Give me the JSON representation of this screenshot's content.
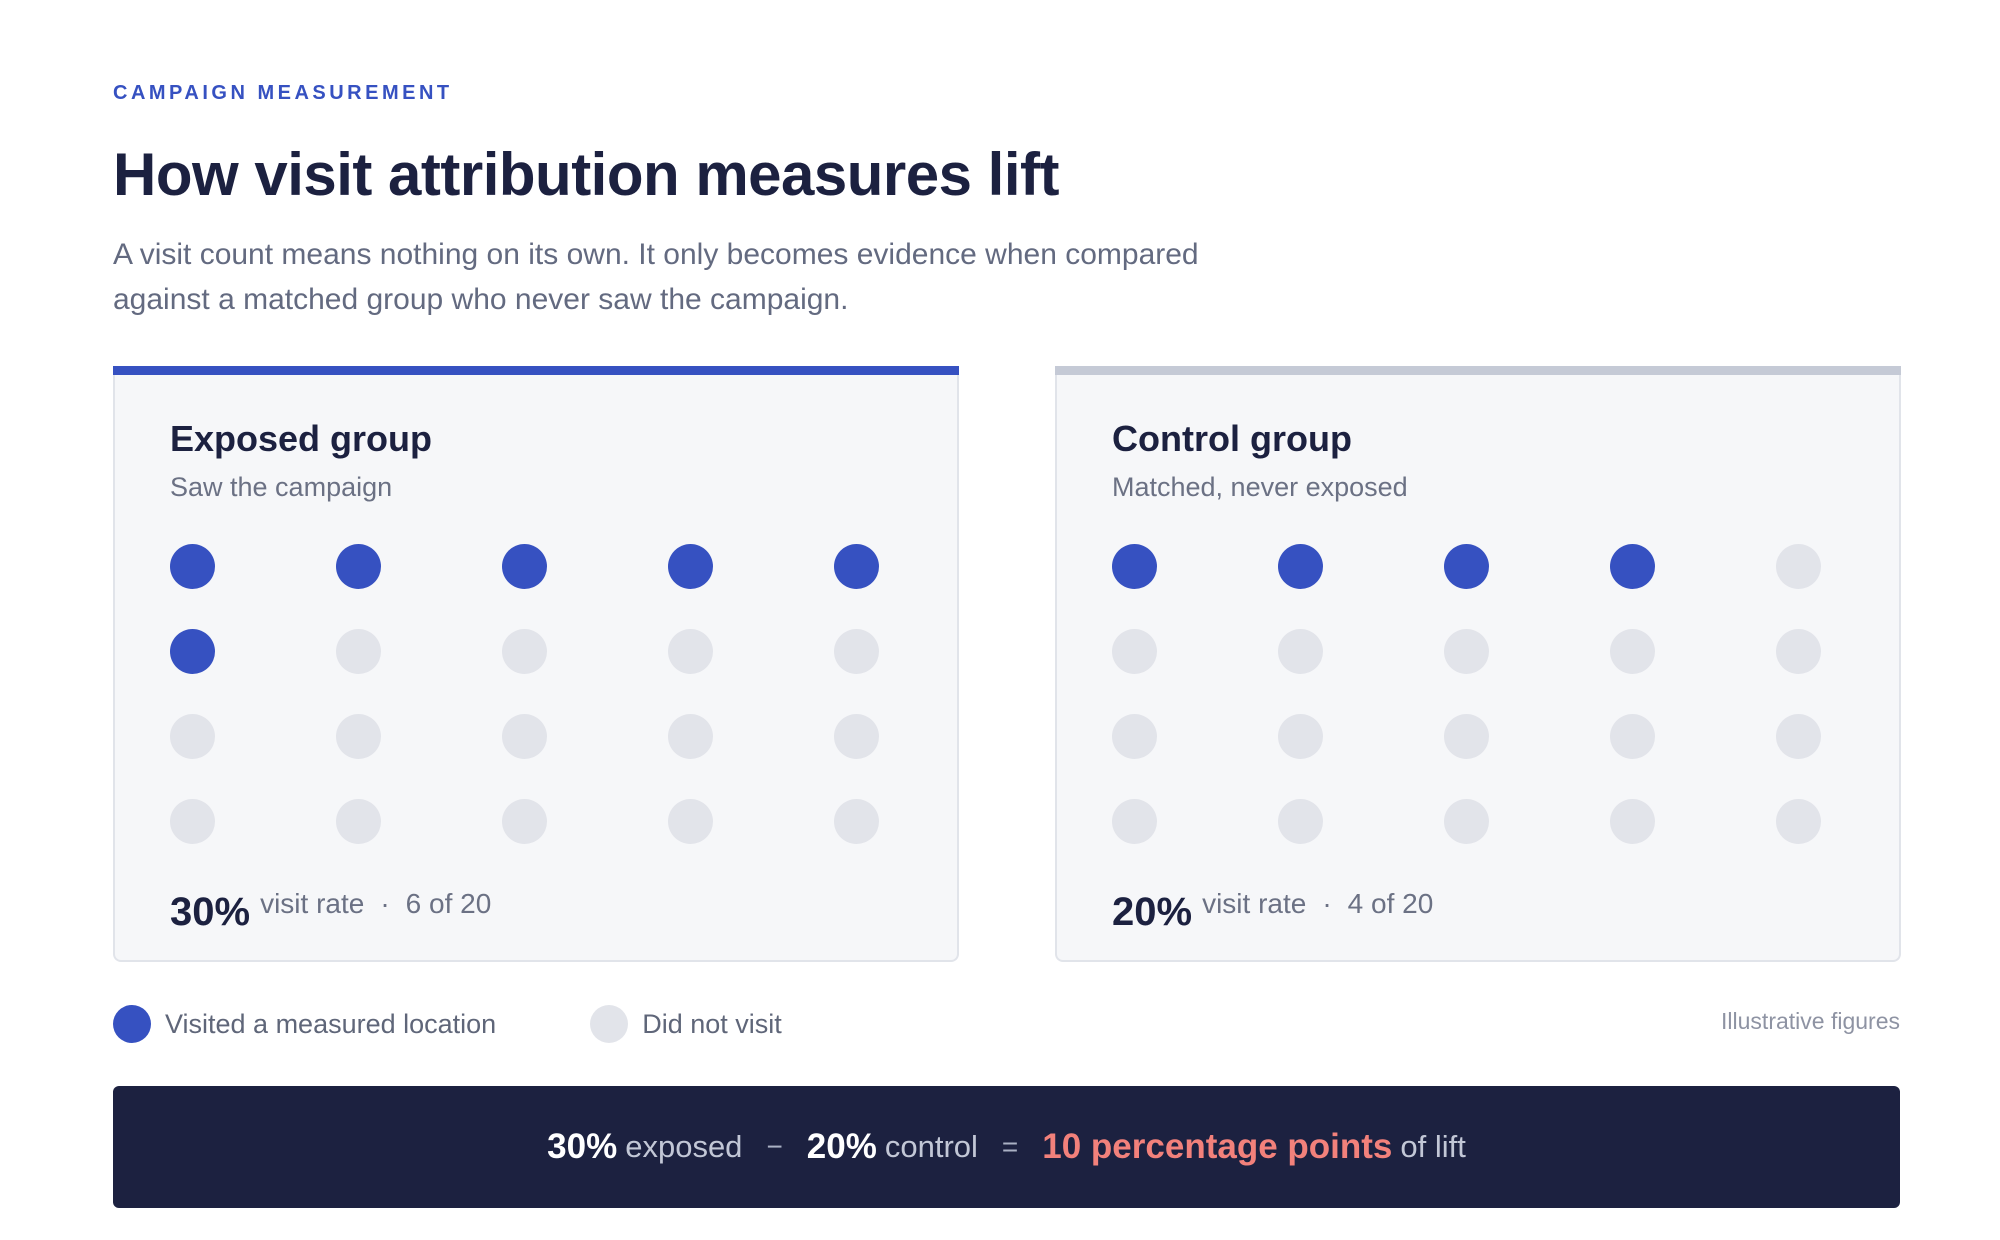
{
  "eyebrow": "CAMPAIGN MEASUREMENT",
  "title": "How visit attribution measures lift",
  "subtitle": "A visit count means nothing on its own. It only becomes evidence when compared against a matched group who never saw the campaign.",
  "colors": {
    "accent": "#3651c1",
    "visited": "#3651c1",
    "not_visited": "#e2e4ea",
    "banner_bg": "#1c2140",
    "highlight": "#f2817b"
  },
  "groups": [
    {
      "title": "Exposed group",
      "subtitle": "Saw the campaign",
      "visited": 6,
      "total": 20,
      "pct": "30%",
      "rate_label": "visit rate",
      "separator": "·",
      "count_text": "6 of 20"
    },
    {
      "title": "Control group",
      "subtitle": "Matched, never exposed",
      "visited": 4,
      "total": 20,
      "pct": "20%",
      "rate_label": "visit rate",
      "separator": "·",
      "count_text": "4 of 20"
    }
  ],
  "legend": {
    "visited": "Visited a measured location",
    "not_visited": "Did not visit"
  },
  "note": "Illustrative figures",
  "summary": {
    "exposed_pct": "30%",
    "exposed_label": "exposed",
    "minus": "−",
    "control_pct": "20%",
    "control_label": "control",
    "equals": "=",
    "result": "10 percentage points",
    "result_suffix": "of lift"
  }
}
